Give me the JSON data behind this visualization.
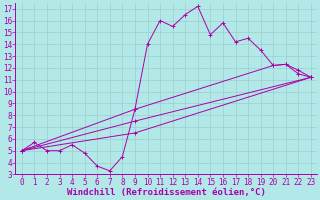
{
  "xlabel": "Windchill (Refroidissement éolien,°C)",
  "bg_color": "#b2e8e8",
  "line_color": "#aa00aa",
  "grid_color": "#9ecece",
  "xlim": [
    -0.5,
    23.5
  ],
  "ylim": [
    3,
    17.5
  ],
  "xticks": [
    0,
    1,
    2,
    3,
    4,
    5,
    6,
    7,
    8,
    9,
    10,
    11,
    12,
    13,
    14,
    15,
    16,
    17,
    18,
    19,
    20,
    21,
    22,
    23
  ],
  "yticks": [
    3,
    4,
    5,
    6,
    7,
    8,
    9,
    10,
    11,
    12,
    13,
    14,
    15,
    16,
    17
  ],
  "series1_x": [
    0,
    1,
    2,
    3,
    4,
    5,
    6,
    7,
    8,
    9,
    10,
    11,
    12,
    13,
    14,
    15,
    16,
    17,
    18,
    19,
    20,
    21,
    22,
    23
  ],
  "series1_y": [
    5.0,
    5.7,
    5.0,
    5.0,
    5.5,
    4.8,
    3.7,
    3.3,
    4.5,
    8.5,
    14.0,
    16.0,
    15.5,
    16.5,
    17.2,
    14.8,
    15.8,
    14.2,
    14.5,
    13.5,
    12.2,
    12.3,
    11.5,
    11.2
  ],
  "series2_x": [
    0,
    9,
    20,
    21,
    22,
    23
  ],
  "series2_y": [
    5.0,
    8.5,
    12.2,
    12.3,
    11.8,
    11.2
  ],
  "series3_x": [
    0,
    9,
    23
  ],
  "series3_y": [
    5.0,
    7.5,
    11.2
  ],
  "series4_x": [
    0,
    9,
    23
  ],
  "series4_y": [
    5.0,
    6.5,
    11.2
  ],
  "xlabel_fontsize": 6.5,
  "tick_fontsize": 5.5
}
